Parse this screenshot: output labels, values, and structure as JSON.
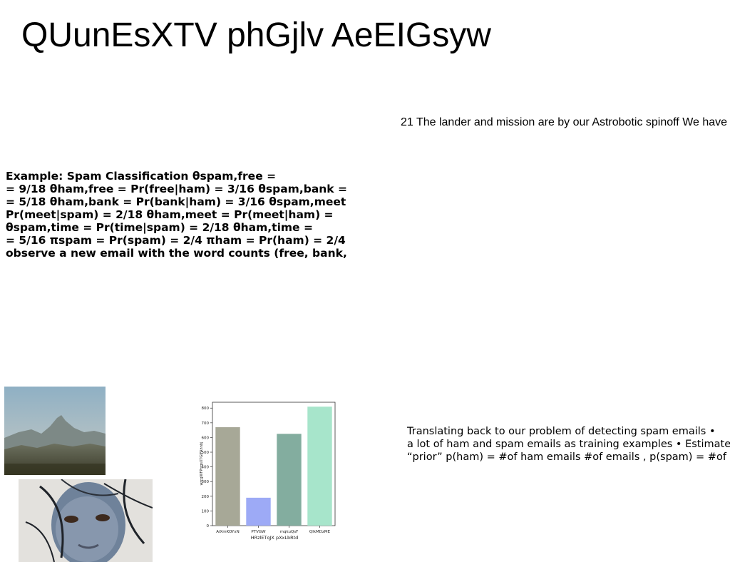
{
  "title": "QUunEsXTV phGjlv AeEIGsyw",
  "right_caption": "21 The lander and mission are by our Astrobotic spinoff We have",
  "bold_block": {
    "lines": [
      "Example: Spam Classification θspam,free =",
      "= 9/18 θham,free = Pr(free|ham) = 3/16 θspam,bank =",
      "= 5/18 θham,bank = Pr(bank|ham) = 3/16 θspam,meet",
      "Pr(meet|spam) = 2/18 θham,meet = Pr(meet|ham) =",
      "θspam,time = Pr(time|spam) = 2/18 θham,time =",
      "= 5/16 πspam = Pr(spam) = 2/4 πham = Pr(ham) = 2/4",
      "observe a new email with the word counts (free, bank,"
    ]
  },
  "right_text": {
    "lines": [
      "Translating back to our problem of detecting spam emails •",
      "a lot of ham and spam emails as training examples • Estimate",
      "“prior” p(ham) = #of ham emails #of emails , p(spam) = #of"
    ]
  },
  "chart_data": {
    "type": "bar",
    "categories": [
      "AiXmKOYxN",
      "PTVGW",
      "mqkuQsF",
      "QIkMDzME"
    ],
    "values": [
      670,
      190,
      625,
      810
    ],
    "colors": [
      "#a7a897",
      "#9daaf6",
      "#83ad9f",
      "#a7e5cb"
    ],
    "xlabel": "HRzlETqJX pXxLbRtd",
    "ylabel": "wrcgWFPrrgsXTGIFAhnbj",
    "yticks": [
      0,
      100,
      200,
      300,
      400,
      500,
      600,
      700,
      800
    ],
    "ylim": [
      0,
      840
    ]
  }
}
